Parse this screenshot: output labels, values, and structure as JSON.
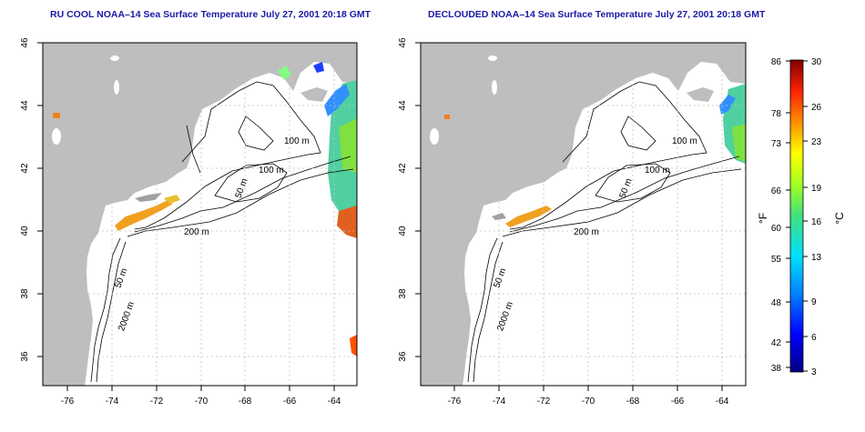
{
  "panels": [
    {
      "title": "RU COOL NOAA–14 Sea Surface Temperature July 27, 2001 20:18 GMT"
    },
    {
      "title": "DECLOUDED NOAA–14 Sea Surface Temperature July 27, 2001 20:18 GMT"
    }
  ],
  "axes": {
    "lon_ticks": [
      "-76",
      "-74",
      "-72",
      "-70",
      "-68",
      "-66",
      "-64"
    ],
    "lat_ticks": [
      "46",
      "44",
      "42",
      "40",
      "38",
      "36"
    ]
  },
  "contours": {
    "labels": [
      "100 m",
      "100 m",
      "50 m",
      "200 m",
      "50 m",
      "2000 m"
    ]
  },
  "colorbar": {
    "unit_left": "°F",
    "unit_right": "°C",
    "f_ticks": [
      "86",
      "78",
      "73",
      "66",
      "60",
      "55",
      "48",
      "42",
      "38"
    ],
    "c_ticks": [
      "30",
      "26",
      "23",
      "19",
      "16",
      "13",
      "9",
      "6",
      "3"
    ]
  },
  "colors": {
    "land": "#bebebe",
    "ocean": "#ffffff",
    "title": "#1a1aa6",
    "contour": "#000000",
    "grid": "#c0c0c0"
  }
}
